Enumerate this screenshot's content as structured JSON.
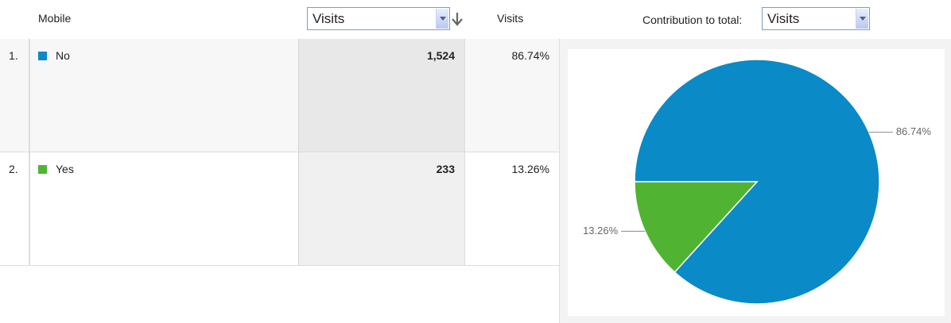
{
  "header": {
    "dimension": "Mobile",
    "metric_select": "Visits",
    "metric_column": "Visits",
    "contribution_label": "Contribution to total:",
    "contribution_select": "Visits"
  },
  "table": {
    "rows": [
      {
        "index": "1.",
        "label": "No",
        "visits": "1,524",
        "percent": "86.74%"
      },
      {
        "index": "2.",
        "label": "Yes",
        "visits": "233",
        "percent": "13.26%"
      }
    ]
  },
  "chart_data": {
    "type": "pie",
    "values": [
      86.74,
      13.26
    ],
    "value_labels": [
      "86.74%",
      "13.26%"
    ],
    "colors": [
      "#0a8ac7",
      "#50b432"
    ]
  }
}
